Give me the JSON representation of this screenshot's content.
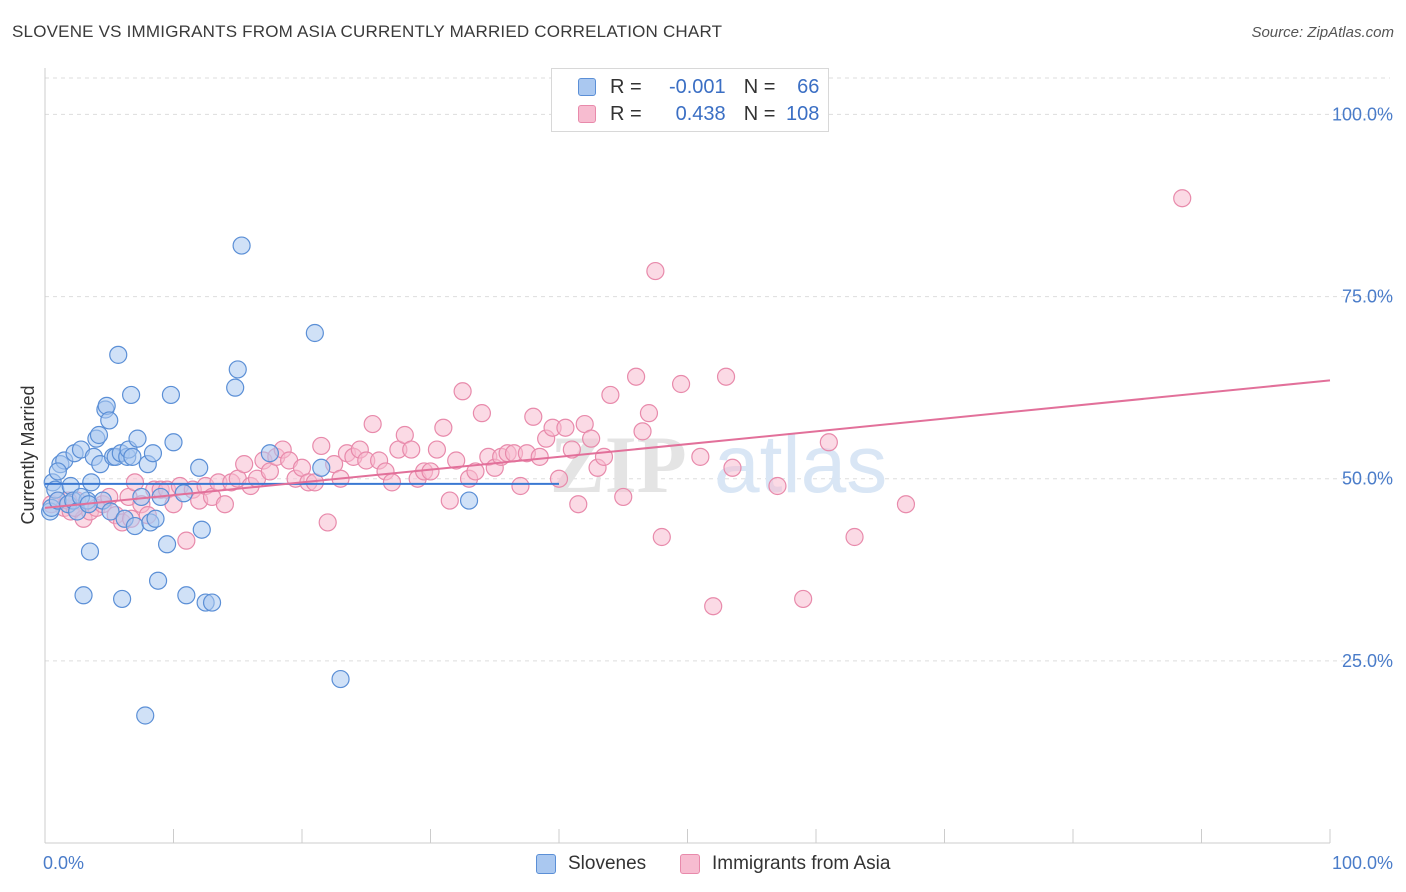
{
  "title": "SLOVENE VS IMMIGRANTS FROM ASIA CURRENTLY MARRIED CORRELATION CHART",
  "source": "Source: ZipAtlas.com",
  "watermark": "ZIPatlas",
  "legend": {
    "row1": {
      "r_label": "R =",
      "r_value": "-0.001",
      "n_label": "N =",
      "n_value": "66"
    },
    "row2": {
      "r_label": "R =",
      "r_value": "0.438",
      "n_label": "N =",
      "n_value": "108"
    }
  },
  "bottom_legend": {
    "series1": "Slovenes",
    "series2": "Immigrants from Asia"
  },
  "colors": {
    "blue_fill": "#aac8f0",
    "blue_stroke": "#5b8fd6",
    "blue_line": "#3a78d2",
    "pink_fill": "#f7bcd0",
    "pink_stroke": "#e88aab",
    "pink_line": "#e2709a",
    "axis_text": "#4a7cc9"
  },
  "chart_data": {
    "type": "scatter",
    "title": "SLOVENE VS IMMIGRANTS FROM ASIA CURRENTLY MARRIED CORRELATION CHART",
    "xlabel": "",
    "ylabel": "Currently Married",
    "xlim": [
      0,
      100
    ],
    "ylim": [
      0,
      105
    ],
    "x_tick_labels": [
      "0.0%",
      "100.0%"
    ],
    "y_tick_labels": [
      "25.0%",
      "50.0%",
      "75.0%",
      "100.0%"
    ],
    "y_ticks": [
      25,
      50,
      75,
      100
    ],
    "series": [
      {
        "name": "Slovenes",
        "R": -0.001,
        "N": 66,
        "trend": {
          "x": [
            0,
            40
          ],
          "y": [
            49.3,
            49.3
          ]
        },
        "points": [
          [
            0.4,
            45.5
          ],
          [
            0.5,
            46.0
          ],
          [
            0.6,
            49.5
          ],
          [
            0.8,
            48.5
          ],
          [
            1.0,
            47.0
          ],
          [
            1.2,
            52.0
          ],
          [
            1.5,
            52.5
          ],
          [
            1.8,
            46.5
          ],
          [
            2.0,
            49.0
          ],
          [
            2.2,
            47.0
          ],
          [
            2.3,
            53.5
          ],
          [
            2.5,
            45.5
          ],
          [
            2.8,
            54.0
          ],
          [
            3.0,
            34.0
          ],
          [
            3.3,
            47.0
          ],
          [
            3.5,
            40.0
          ],
          [
            3.6,
            49.5
          ],
          [
            3.8,
            53.0
          ],
          [
            4.0,
            55.5
          ],
          [
            4.2,
            56.0
          ],
          [
            4.3,
            52.0
          ],
          [
            4.5,
            47.0
          ],
          [
            4.7,
            59.5
          ],
          [
            4.8,
            60.0
          ],
          [
            5.0,
            58.0
          ],
          [
            5.1,
            45.5
          ],
          [
            5.3,
            53.0
          ],
          [
            5.5,
            53.0
          ],
          [
            5.7,
            67.0
          ],
          [
            5.9,
            53.5
          ],
          [
            6.0,
            33.5
          ],
          [
            6.2,
            44.5
          ],
          [
            6.4,
            53.0
          ],
          [
            6.5,
            54.0
          ],
          [
            6.7,
            61.5
          ],
          [
            7.0,
            43.5
          ],
          [
            7.2,
            55.5
          ],
          [
            7.5,
            47.5
          ],
          [
            7.8,
            17.5
          ],
          [
            8.0,
            52.0
          ],
          [
            8.2,
            44.0
          ],
          [
            8.4,
            53.5
          ],
          [
            8.6,
            44.5
          ],
          [
            8.8,
            36.0
          ],
          [
            9.5,
            41.0
          ],
          [
            9.8,
            61.5
          ],
          [
            10.0,
            55.0
          ],
          [
            10.8,
            48.0
          ],
          [
            11.0,
            34.0
          ],
          [
            12.0,
            51.5
          ],
          [
            12.2,
            43.0
          ],
          [
            12.5,
            33.0
          ],
          [
            13.0,
            33.0
          ],
          [
            14.8,
            62.5
          ],
          [
            15.0,
            65.0
          ],
          [
            15.3,
            82.0
          ],
          [
            17.5,
            53.5
          ],
          [
            21.0,
            70.0
          ],
          [
            21.5,
            51.5
          ],
          [
            23.0,
            22.5
          ],
          [
            33.0,
            47.0
          ],
          [
            2.8,
            47.5
          ],
          [
            3.4,
            46.5
          ],
          [
            1.0,
            51.0
          ],
          [
            6.8,
            53.0
          ],
          [
            9.0,
            47.5
          ]
        ]
      },
      {
        "name": "Immigrants from Asia",
        "R": 0.438,
        "N": 108,
        "trend": {
          "x": [
            0,
            100
          ],
          "y": [
            46.0,
            63.5
          ]
        },
        "points": [
          [
            0.5,
            46.5
          ],
          [
            1.0,
            47.0
          ],
          [
            1.5,
            46.0
          ],
          [
            2.0,
            45.5
          ],
          [
            2.5,
            47.0
          ],
          [
            3.0,
            44.5
          ],
          [
            3.5,
            45.5
          ],
          [
            4.0,
            46.0
          ],
          [
            4.5,
            46.5
          ],
          [
            5.0,
            47.5
          ],
          [
            5.5,
            45.0
          ],
          [
            6.0,
            44.0
          ],
          [
            6.5,
            47.5
          ],
          [
            7.0,
            49.5
          ],
          [
            7.5,
            46.5
          ],
          [
            8.0,
            45.0
          ],
          [
            8.5,
            48.5
          ],
          [
            9.0,
            48.5
          ],
          [
            9.5,
            48.5
          ],
          [
            10.0,
            46.5
          ],
          [
            10.5,
            49.0
          ],
          [
            11.0,
            41.5
          ],
          [
            11.5,
            48.5
          ],
          [
            12.0,
            47.0
          ],
          [
            12.5,
            49.0
          ],
          [
            13.0,
            47.5
          ],
          [
            13.5,
            49.5
          ],
          [
            14.0,
            46.5
          ],
          [
            14.5,
            49.5
          ],
          [
            15.0,
            50.0
          ],
          [
            15.5,
            52.0
          ],
          [
            16.0,
            49.0
          ],
          [
            16.5,
            50.0
          ],
          [
            17.0,
            52.5
          ],
          [
            17.5,
            51.0
          ],
          [
            18.0,
            53.0
          ],
          [
            18.5,
            54.0
          ],
          [
            19.0,
            52.5
          ],
          [
            19.5,
            50.0
          ],
          [
            20.0,
            51.5
          ],
          [
            20.5,
            49.5
          ],
          [
            21.0,
            49.5
          ],
          [
            21.5,
            54.5
          ],
          [
            22.0,
            44.0
          ],
          [
            22.5,
            52.0
          ],
          [
            23.0,
            50.0
          ],
          [
            23.5,
            53.5
          ],
          [
            24.0,
            53.0
          ],
          [
            24.5,
            54.0
          ],
          [
            25.0,
            52.5
          ],
          [
            25.5,
            57.5
          ],
          [
            26.0,
            52.5
          ],
          [
            26.5,
            51.0
          ],
          [
            27.0,
            49.5
          ],
          [
            27.5,
            54.0
          ],
          [
            28.0,
            56.0
          ],
          [
            28.5,
            54.0
          ],
          [
            29.0,
            50.0
          ],
          [
            29.5,
            51.0
          ],
          [
            30.0,
            51.0
          ],
          [
            30.5,
            54.0
          ],
          [
            31.0,
            57.0
          ],
          [
            31.5,
            47.0
          ],
          [
            32.0,
            52.5
          ],
          [
            32.5,
            62.0
          ],
          [
            33.0,
            50.0
          ],
          [
            33.5,
            51.0
          ],
          [
            34.0,
            59.0
          ],
          [
            34.5,
            53.0
          ],
          [
            35.0,
            51.5
          ],
          [
            35.5,
            53.0
          ],
          [
            36.0,
            53.5
          ],
          [
            36.5,
            53.5
          ],
          [
            37.0,
            49.0
          ],
          [
            37.5,
            53.5
          ],
          [
            38.0,
            58.5
          ],
          [
            38.5,
            53.0
          ],
          [
            39.0,
            55.5
          ],
          [
            39.5,
            57.0
          ],
          [
            40.0,
            50.0
          ],
          [
            40.5,
            57.0
          ],
          [
            41.0,
            54.0
          ],
          [
            41.5,
            46.5
          ],
          [
            42.0,
            57.5
          ],
          [
            42.5,
            55.5
          ],
          [
            43.0,
            51.5
          ],
          [
            43.5,
            53.0
          ],
          [
            44.0,
            61.5
          ],
          [
            45.0,
            47.5
          ],
          [
            46.0,
            64.0
          ],
          [
            46.5,
            56.5
          ],
          [
            47.0,
            59.0
          ],
          [
            47.5,
            78.5
          ],
          [
            48.0,
            42.0
          ],
          [
            49.5,
            63.0
          ],
          [
            51.0,
            53.0
          ],
          [
            52.0,
            32.5
          ],
          [
            53.0,
            64.0
          ],
          [
            53.5,
            51.5
          ],
          [
            57.0,
            49.0
          ],
          [
            59.0,
            33.5
          ],
          [
            61.0,
            55.0
          ],
          [
            63.0,
            42.0
          ],
          [
            67.0,
            46.5
          ],
          [
            88.5,
            88.5
          ],
          [
            6.7,
            44.5
          ],
          [
            2.3,
            46.0
          ],
          [
            1.8,
            47.0
          ]
        ]
      }
    ]
  }
}
